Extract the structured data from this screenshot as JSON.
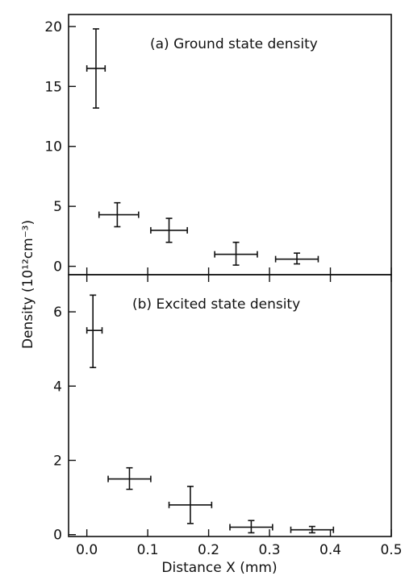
{
  "chart_data": [
    {
      "type": "scatter",
      "title": "(a) Ground state density",
      "xlabel": "Distance X (mm)",
      "ylabel": "Density (10¹²cm⁻³)",
      "xlim": [
        -0.03,
        0.5
      ],
      "ylim": [
        -0.7,
        21
      ],
      "yticks": [
        "0",
        "5",
        "10",
        "15",
        "20"
      ],
      "points": [
        {
          "x": 0.015,
          "y": 16.5,
          "xerr": [
            0.0,
            0.03
          ],
          "yerr": [
            13.2,
            19.8
          ]
        },
        {
          "x": 0.05,
          "y": 4.3,
          "xerr": [
            0.02,
            0.085
          ],
          "yerr": [
            3.3,
            5.3
          ]
        },
        {
          "x": 0.135,
          "y": 3.0,
          "xerr": [
            0.105,
            0.165
          ],
          "yerr": [
            2.0,
            4.0
          ]
        },
        {
          "x": 0.245,
          "y": 1.0,
          "xerr": [
            0.21,
            0.28
          ],
          "yerr": [
            0.1,
            2.0
          ]
        },
        {
          "x": 0.345,
          "y": 0.6,
          "xerr": [
            0.31,
            0.38
          ],
          "yerr": [
            0.2,
            1.1
          ]
        }
      ]
    },
    {
      "type": "scatter",
      "title": "(b) Excited state density",
      "xlabel": "Distance X (mm)",
      "ylabel": "Density (10¹²cm⁻³)",
      "xlim": [
        -0.03,
        0.5
      ],
      "ylim": [
        -0.05,
        7
      ],
      "yticks": [
        "0",
        "2",
        "4",
        "6"
      ],
      "xticks": [
        "0.0",
        "0.1",
        "0.2",
        "0.3",
        "0.4",
        "0.5"
      ],
      "points": [
        {
          "x": 0.01,
          "y": 5.5,
          "xerr": [
            0.0,
            0.025
          ],
          "yerr": [
            4.5,
            6.45
          ]
        },
        {
          "x": 0.07,
          "y": 1.5,
          "xerr": [
            0.035,
            0.105
          ],
          "yerr": [
            1.22,
            1.8
          ]
        },
        {
          "x": 0.17,
          "y": 0.8,
          "xerr": [
            0.135,
            0.205
          ],
          "yerr": [
            0.3,
            1.3
          ]
        },
        {
          "x": 0.27,
          "y": 0.2,
          "xerr": [
            0.235,
            0.305
          ],
          "yerr": [
            0.05,
            0.38
          ]
        },
        {
          "x": 0.37,
          "y": 0.13,
          "xerr": [
            0.335,
            0.405
          ],
          "yerr": [
            0.05,
            0.22
          ]
        }
      ]
    }
  ]
}
